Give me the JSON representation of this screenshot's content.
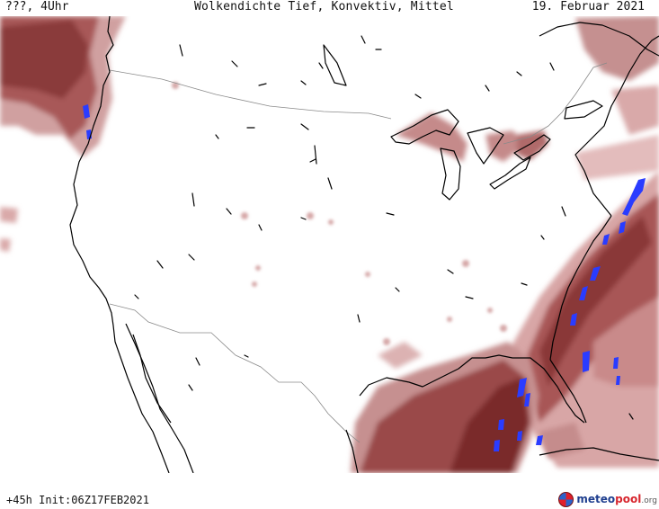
{
  "header": {
    "left": "???, 4Uhr",
    "title": "Wolkendichte  Tief, Konvektiv, Mittel",
    "date": "19. Februar 2021"
  },
  "footer": {
    "init": "+45h Init:06Z17FEB2021"
  },
  "logo": {
    "part1": "meteo",
    "part2": "pool",
    "part3": ".org"
  },
  "colors": {
    "cloud_dark": "#7a2a2a",
    "cloud_mid": "#a85454",
    "cloud_light": "#d8a4a4",
    "convective": "#2a3cff",
    "coastline": "#000000",
    "border": "#888888"
  }
}
